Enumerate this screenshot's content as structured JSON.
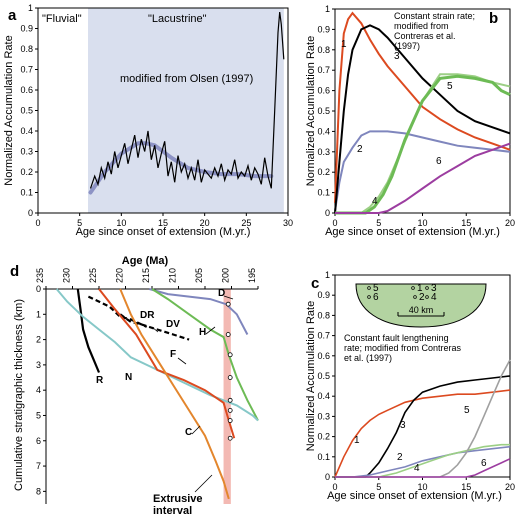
{
  "colors": {
    "shade": "#d9dfee",
    "red": "#dc4a20",
    "black": "#000000",
    "gray": "#a0a0a0",
    "purple": "#9c3da0",
    "green": "#6dbb55",
    "light_green": "#9ccf85",
    "slate": "#7f86bd",
    "orange": "#e3862d",
    "cyan": "#86c8c8",
    "pink": "#f0a8a0",
    "basin": "#b3d3a1"
  },
  "chart_data": [
    {
      "panel": "a",
      "type": "line",
      "xlabel": "Age since onset of extension (M.yr.)",
      "ylabel": "Normalized Accumulation Rate",
      "xlim": [
        0,
        30
      ],
      "ylim": [
        0,
        1.0
      ],
      "xticks": [
        "0",
        "5",
        "10",
        "15",
        "20",
        "25",
        "30"
      ],
      "yticks": [
        "0",
        "0.1",
        "0.2",
        "0.3",
        "0.4",
        "0.5",
        "0.6",
        "0.7",
        "0.8",
        "0.9",
        "1"
      ],
      "regions": [
        {
          "label": "\"Fluvial\"",
          "x": [
            0,
            6
          ]
        },
        {
          "label": "\"Lacustrine\"",
          "x": [
            6,
            29.5
          ]
        }
      ],
      "annotation": "modified from Olsen (1997)",
      "series": [
        {
          "style": "raw",
          "x": [
            6.3,
            6.8,
            7.2,
            7.6,
            8.0,
            8.4,
            8.8,
            9.2,
            9.6,
            10.0,
            10.4,
            10.8,
            11.2,
            11.6,
            12.0,
            12.4,
            12.8,
            13.2,
            13.6,
            14.0,
            14.4,
            14.8,
            15.2,
            15.6,
            16.0,
            16.4,
            16.8,
            17.2,
            17.6,
            18.0,
            18.4,
            18.8,
            19.2,
            19.6,
            20.0,
            20.4,
            20.8,
            21.2,
            21.6,
            22.0,
            22.4,
            22.8,
            23.2,
            23.6,
            24.0,
            24.4,
            24.8,
            25.2,
            25.6,
            26.0,
            26.4,
            26.8,
            27.2,
            27.6,
            28.0,
            28.4,
            28.8,
            29.0,
            29.2,
            29.5
          ],
          "y": [
            0.12,
            0.18,
            0.14,
            0.22,
            0.17,
            0.25,
            0.19,
            0.3,
            0.22,
            0.28,
            0.34,
            0.24,
            0.31,
            0.38,
            0.27,
            0.36,
            0.3,
            0.4,
            0.26,
            0.33,
            0.22,
            0.29,
            0.35,
            0.18,
            0.25,
            0.15,
            0.28,
            0.2,
            0.24,
            0.17,
            0.22,
            0.16,
            0.26,
            0.15,
            0.21,
            0.19,
            0.17,
            0.22,
            0.18,
            0.24,
            0.16,
            0.21,
            0.19,
            0.26,
            0.17,
            0.2,
            0.18,
            0.23,
            0.16,
            0.22,
            0.19,
            0.14,
            0.27,
            0.18,
            0.12,
            0.5,
            0.88,
            0.98,
            0.92,
            0.75
          ]
        },
        {
          "style": "smoothed",
          "x": [
            6.3,
            8,
            10,
            12,
            13,
            14,
            16,
            18,
            20,
            22,
            24,
            26,
            28
          ],
          "y": [
            0.1,
            0.2,
            0.29,
            0.34,
            0.34,
            0.33,
            0.27,
            0.22,
            0.2,
            0.19,
            0.19,
            0.18,
            0.18
          ]
        }
      ]
    },
    {
      "panel": "b",
      "type": "line",
      "xlabel": "Age since onset of extension (M.yr.)",
      "ylabel": "Normalized Accumulation Rate",
      "xlim": [
        0,
        20
      ],
      "ylim": [
        0,
        1.0
      ],
      "xticks": [
        "0",
        "5",
        "10",
        "15",
        "20"
      ],
      "yticks": [
        "0",
        "0.1",
        "0.2",
        "0.3",
        "0.4",
        "0.5",
        "0.6",
        "0.7",
        "0.8",
        "0.9",
        "1"
      ],
      "annotation": "Constant strain rate; modified from Contreras et al. (1997)",
      "series": [
        {
          "name": "1",
          "color": "red",
          "x": [
            0,
            0.5,
            1,
            1.5,
            2,
            3,
            4,
            5,
            6,
            8,
            10,
            12,
            14,
            16,
            18,
            20
          ],
          "y": [
            0.05,
            0.6,
            0.88,
            0.95,
            0.98,
            0.93,
            0.85,
            0.78,
            0.72,
            0.62,
            0.52,
            0.46,
            0.41,
            0.37,
            0.34,
            0.31
          ]
        },
        {
          "name": "2",
          "color": "slate",
          "x": [
            0,
            0.5,
            1,
            2,
            3,
            4,
            5,
            6,
            8,
            10,
            12,
            14,
            16,
            18,
            20
          ],
          "y": [
            0.01,
            0.15,
            0.25,
            0.32,
            0.38,
            0.4,
            0.4,
            0.4,
            0.39,
            0.37,
            0.35,
            0.33,
            0.32,
            0.31,
            0.3
          ]
        },
        {
          "name": "3",
          "color": "black",
          "x": [
            0,
            0.5,
            1,
            1.5,
            2,
            3,
            4,
            5,
            6,
            8,
            10,
            12,
            14,
            16,
            18,
            20
          ],
          "y": [
            0.0,
            0.25,
            0.5,
            0.68,
            0.8,
            0.9,
            0.92,
            0.9,
            0.86,
            0.76,
            0.66,
            0.58,
            0.5,
            0.45,
            0.42,
            0.39
          ]
        },
        {
          "name": "4",
          "color": "light_green",
          "x": [
            0,
            3,
            4,
            5,
            6,
            8,
            10,
            12,
            14,
            16,
            18,
            20
          ],
          "y": [
            0.0,
            0.0,
            0.03,
            0.08,
            0.15,
            0.35,
            0.55,
            0.68,
            0.68,
            0.67,
            0.64,
            0.62
          ]
        },
        {
          "name": "5",
          "color": "green",
          "x": [
            0,
            3.5,
            4.5,
            5.5,
            6.5,
            8,
            10,
            12,
            14,
            16,
            18,
            19,
            20
          ],
          "y": [
            0.0,
            0.0,
            0.03,
            0.09,
            0.18,
            0.36,
            0.55,
            0.66,
            0.67,
            0.66,
            0.64,
            0.6,
            0.58
          ]
        },
        {
          "name": "6",
          "color": "purple",
          "x": [
            0,
            5,
            6,
            8,
            10,
            12,
            14,
            16,
            18,
            20
          ],
          "y": [
            0.0,
            0.0,
            0.01,
            0.06,
            0.12,
            0.18,
            0.23,
            0.28,
            0.31,
            0.34
          ]
        }
      ]
    },
    {
      "panel": "c",
      "type": "line",
      "xlabel": "Age since onset of extension (M.yr.)",
      "ylabel": "Normalized Accumulation Rate",
      "xlim": [
        0,
        20
      ],
      "ylim": [
        0,
        1.0
      ],
      "xticks": [
        "0",
        "5",
        "10",
        "15",
        "20"
      ],
      "yticks": [
        "0",
        "0.1",
        "0.2",
        "0.3",
        "0.4",
        "0.5",
        "0.6",
        "0.7",
        "0.8",
        "0.9",
        "1"
      ],
      "annotation": "Constant fault lengthening rate; modified from Contreras et al. (1997)",
      "inset": {
        "label": "40 km",
        "points": [
          "5",
          "6",
          "1",
          "3",
          "2",
          "4"
        ]
      },
      "series": [
        {
          "name": "1",
          "color": "red",
          "x": [
            0,
            1,
            2,
            3,
            4,
            5,
            6,
            8,
            10,
            12,
            14,
            16,
            18,
            20
          ],
          "y": [
            0.0,
            0.1,
            0.18,
            0.24,
            0.28,
            0.31,
            0.33,
            0.37,
            0.39,
            0.4,
            0.41,
            0.41,
            0.42,
            0.43
          ]
        },
        {
          "name": "3",
          "color": "black",
          "x": [
            0,
            3.5,
            4,
            5,
            6,
            7,
            8,
            9,
            10,
            12,
            14,
            16,
            18,
            20
          ],
          "y": [
            0.0,
            0.0,
            0.02,
            0.07,
            0.14,
            0.22,
            0.32,
            0.38,
            0.42,
            0.45,
            0.47,
            0.48,
            0.49,
            0.5
          ]
        },
        {
          "name": "2",
          "color": "slate",
          "x": [
            0,
            2,
            4,
            6,
            8,
            10,
            12,
            14,
            16,
            18,
            20
          ],
          "y": [
            0.0,
            0.0,
            0.01,
            0.03,
            0.05,
            0.08,
            0.1,
            0.12,
            0.13,
            0.14,
            0.15
          ]
        },
        {
          "name": "4",
          "color": "light_green",
          "x": [
            0,
            5,
            7,
            9,
            11,
            13,
            15,
            17,
            19,
            20
          ],
          "y": [
            0.0,
            0.0,
            0.02,
            0.05,
            0.08,
            0.11,
            0.13,
            0.15,
            0.16,
            0.16
          ]
        },
        {
          "name": "5",
          "color": "gray",
          "x": [
            0,
            12,
            13,
            14,
            15,
            16,
            17,
            18,
            19,
            20
          ],
          "y": [
            0.0,
            0.0,
            0.02,
            0.06,
            0.12,
            0.2,
            0.3,
            0.4,
            0.5,
            0.58
          ]
        },
        {
          "name": "6",
          "color": "purple",
          "x": [
            0,
            15,
            16,
            17,
            18,
            19,
            20
          ],
          "y": [
            0.0,
            0.0,
            0.01,
            0.03,
            0.05,
            0.07,
            0.09
          ]
        }
      ]
    },
    {
      "panel": "d",
      "type": "line",
      "xlabel": "Age (Ma)",
      "ylabel": "Cumulative stratigraphic thickness (km)",
      "xlim": [
        235,
        195
      ],
      "ylim": [
        0,
        8.5
      ],
      "xticks": [
        "235",
        "230",
        "225",
        "220",
        "215",
        "210",
        "205",
        "200",
        "195"
      ],
      "yticks": [
        "0",
        "1",
        "2",
        "3",
        "4",
        "5",
        "6",
        "7",
        "8"
      ],
      "band": {
        "label": "Extrusive interval",
        "x": [
          201.5,
          200.5
        ]
      },
      "series": [
        {
          "name": "D",
          "color": "slate",
          "x": [
            215.5,
            212,
            208,
            204,
            201,
            199,
            197
          ],
          "y": [
            0.0,
            0.2,
            0.3,
            0.4,
            0.6,
            1.0,
            1.8
          ]
        },
        {
          "name": "H",
          "color": "green",
          "x": [
            215,
            212,
            208,
            204,
            201.5,
            200.5,
            199,
            197,
            195
          ],
          "y": [
            0.0,
            0.4,
            1.0,
            1.6,
            1.9,
            2.6,
            3.5,
            4.4,
            5.2
          ]
        },
        {
          "name": "DR",
          "color": "black",
          "dashed": true,
          "x": [
            227,
            225,
            223,
            221,
            219,
            218,
            216
          ],
          "y": [
            0.3,
            0.5,
            0.7,
            1.1,
            1.2,
            1.3,
            1.5
          ]
        },
        {
          "name": "DV",
          "color": "black",
          "dashed": true,
          "x": [
            221,
            219,
            217,
            214,
            211,
            208
          ],
          "y": [
            1.0,
            1.3,
            1.4,
            1.6,
            1.8,
            2.0
          ]
        },
        {
          "name": "R",
          "color": "black",
          "x": [
            229,
            228.5,
            228,
            227,
            226,
            225
          ],
          "y": [
            0.0,
            0.8,
            1.6,
            2.3,
            2.8,
            3.3
          ]
        },
        {
          "name": "F",
          "color": "cyan",
          "x": [
            233,
            231,
            228,
            225,
            222,
            219,
            214,
            209,
            204,
            201.5,
            199,
            196,
            195
          ],
          "y": [
            0.0,
            0.5,
            1.1,
            1.6,
            2.1,
            2.7,
            3.2,
            3.7,
            4.2,
            4.4,
            4.6,
            5.0,
            5.2
          ]
        },
        {
          "name": "N",
          "color": "red",
          "x": [
            225,
            222,
            218,
            214,
            209,
            205,
            201.5,
            200.5,
            199.5
          ],
          "y": [
            0.0,
            0.8,
            1.8,
            3.2,
            3.6,
            4.0,
            4.5,
            5.2,
            5.9
          ]
        },
        {
          "name": "C",
          "color": "orange",
          "x": [
            221,
            220,
            219,
            217,
            214,
            211,
            208,
            205,
            203,
            201.5,
            200.5
          ],
          "y": [
            0.0,
            0.5,
            1.0,
            1.8,
            2.8,
            3.8,
            4.8,
            5.8,
            6.8,
            7.6,
            8.3
          ]
        }
      ]
    }
  ]
}
